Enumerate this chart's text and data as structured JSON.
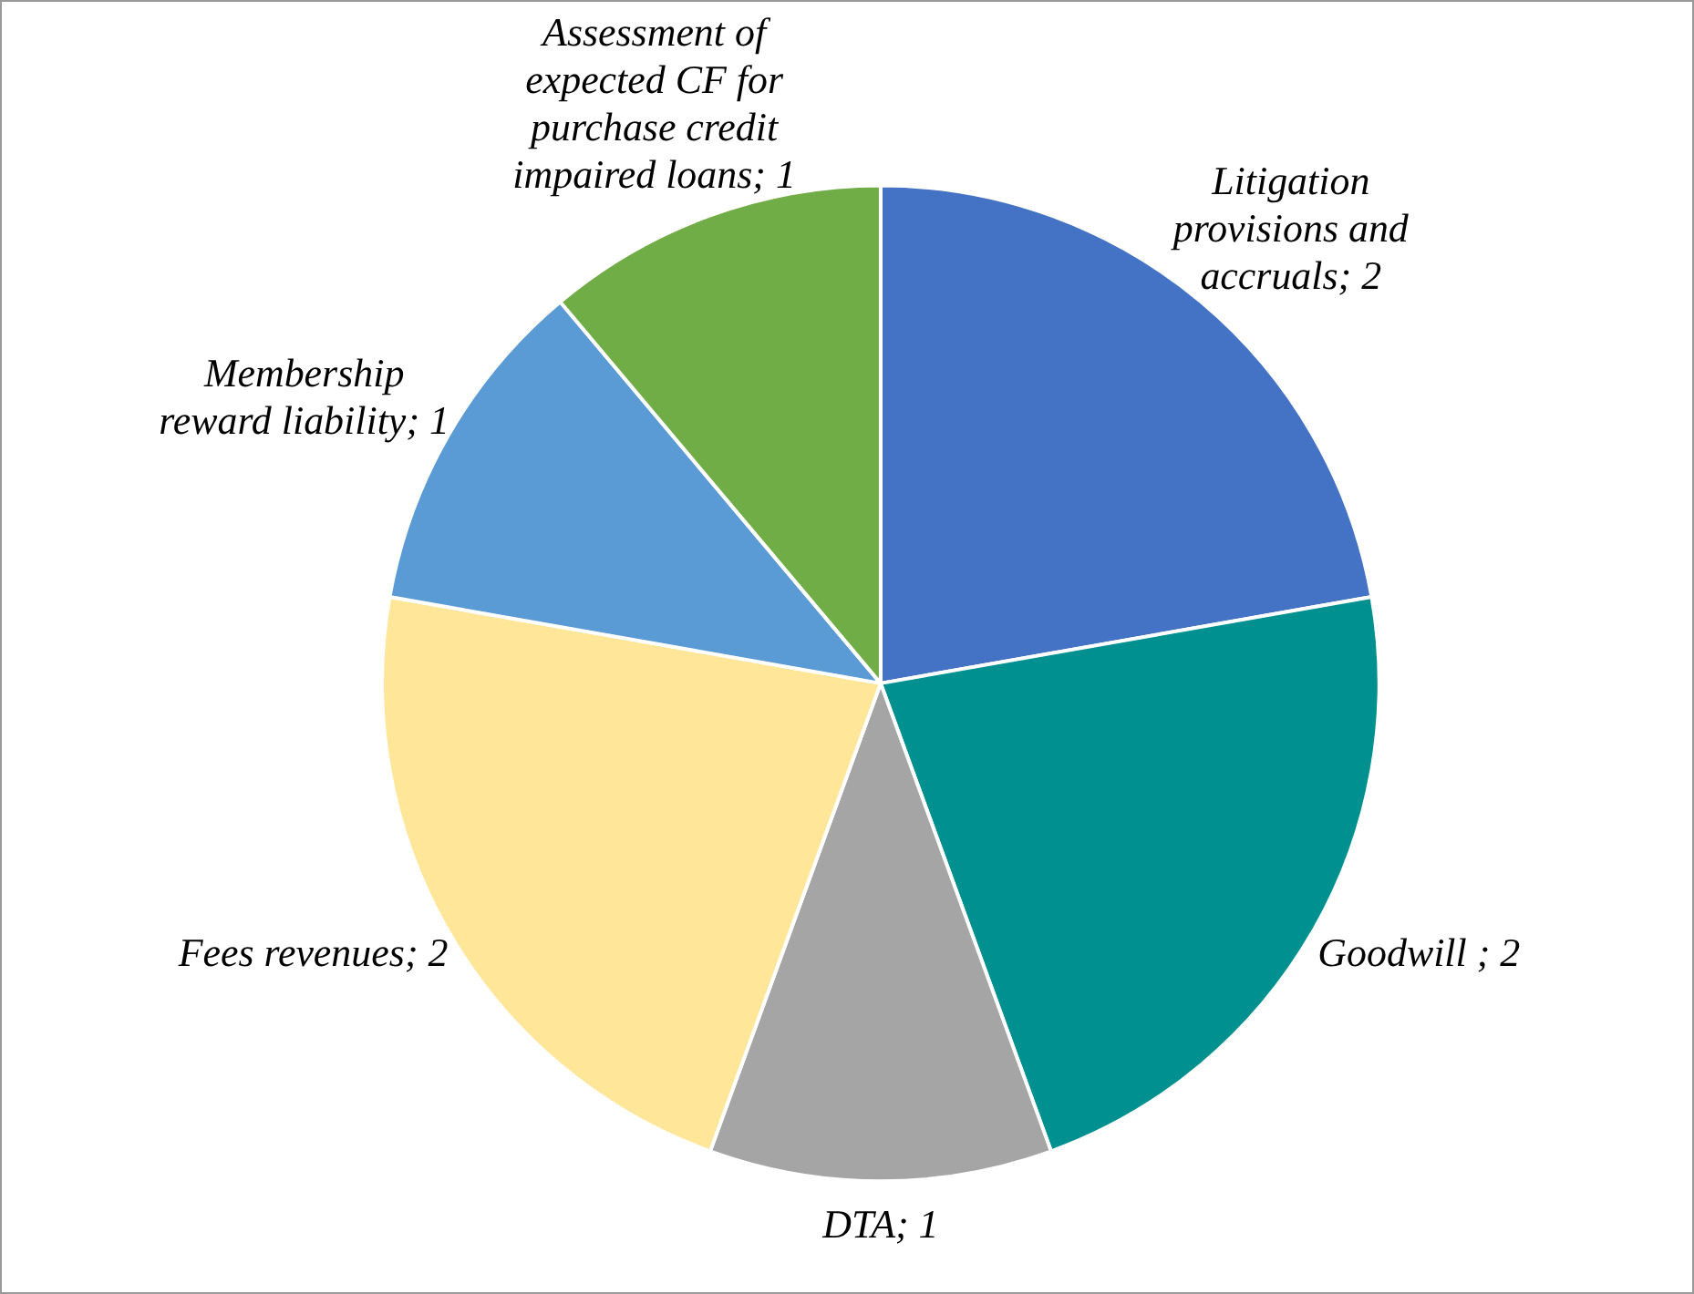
{
  "chart_data": {
    "type": "pie",
    "categories": [
      "Litigation provisions and accruals",
      "Goodwill ",
      "DTA",
      "Fees revenues",
      "Membership reward liability",
      "Assessment of expected CF for purchase credit impaired loans"
    ],
    "values": [
      2,
      2,
      1,
      2,
      1,
      1
    ],
    "colors": [
      "#4472c4",
      "#009090",
      "#a5a5a5",
      "#ffe699",
      "#5b9bd5",
      "#70ad47"
    ],
    "value_labels": [
      "; 2",
      "; 2",
      "; 1",
      "; 2",
      "; 1",
      "; 1"
    ],
    "legend": false
  }
}
